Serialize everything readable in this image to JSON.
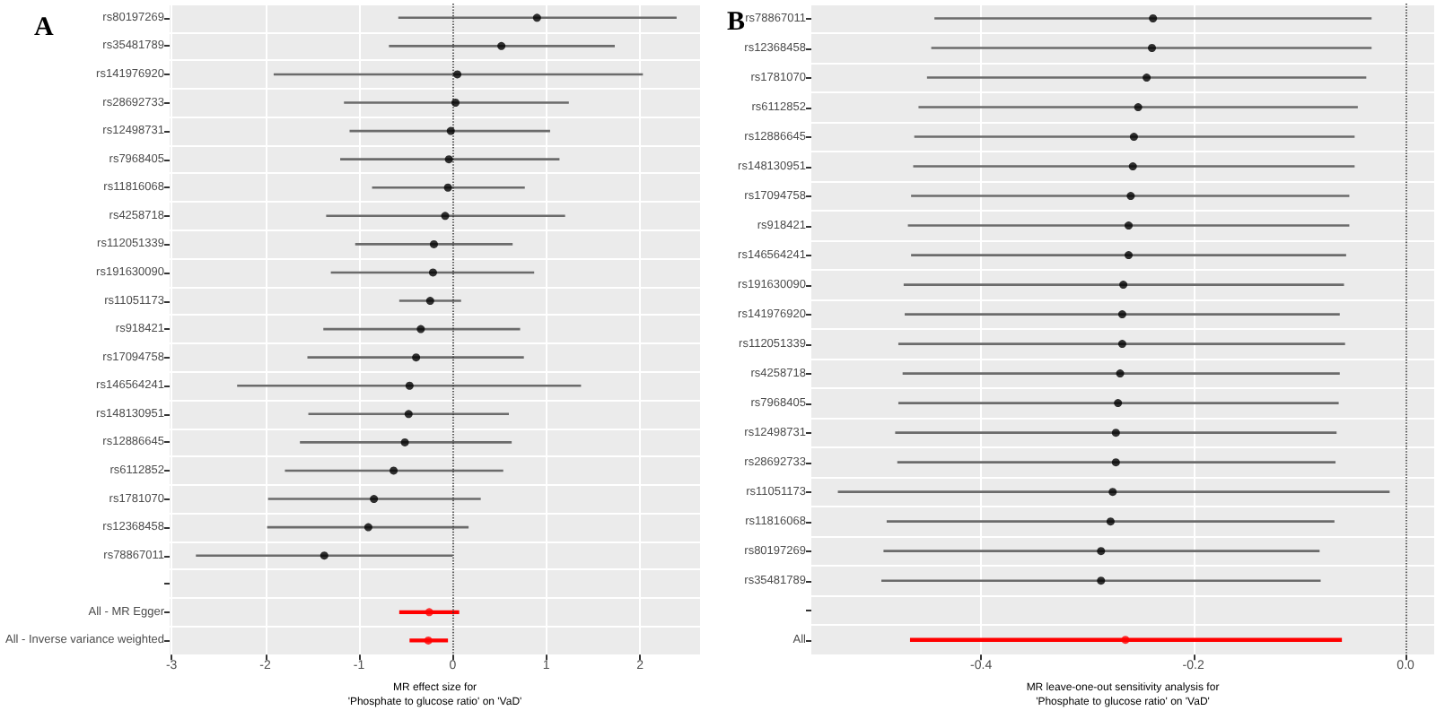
{
  "chart_data": [
    {
      "type": "scatter",
      "orientation": "horizontal",
      "title": "A",
      "xlabel": "MR effect size for\n'Phosphate to glucose ratio' on 'VaD'",
      "categories": [
        "rs80197269",
        "rs35481789",
        "rs141976920",
        "rs28692733",
        "rs12498731",
        "rs7968405",
        "rs11816068",
        "rs4258718",
        "rs112051339",
        "rs191630090",
        "rs11051173",
        "rs918421",
        "rs17094758",
        "rs146564241",
        "rs148130951",
        "rs12886645",
        "rs6112852",
        "rs1781070",
        "rs12368458",
        "rs78867011",
        null,
        "All - MR Egger",
        "All - Inverse variance weighted"
      ],
      "series": [
        {
          "color": "#000000",
          "values": [
            0.9,
            0.52,
            0.05,
            0.03,
            -0.02,
            -0.04,
            -0.05,
            -0.08,
            -0.2,
            -0.21,
            -0.24,
            -0.34,
            -0.39,
            -0.46,
            -0.47,
            -0.51,
            -0.63,
            -0.84,
            -0.9,
            -1.37,
            null,
            null,
            null
          ],
          "errors": [
            [
              -0.58,
              2.39
            ],
            [
              -0.68,
              1.73
            ],
            [
              -1.91,
              2.03
            ],
            [
              -1.16,
              1.24
            ],
            [
              -1.1,
              1.04
            ],
            [
              -1.2,
              1.14
            ],
            [
              -0.86,
              0.77
            ],
            [
              -1.35,
              1.2
            ],
            [
              -1.04,
              0.64
            ],
            [
              -1.3,
              0.87
            ],
            [
              -0.57,
              0.09
            ],
            [
              -1.38,
              0.72
            ],
            [
              -1.55,
              0.76
            ],
            [
              -2.3,
              1.37
            ],
            [
              -1.54,
              0.6
            ],
            [
              -1.63,
              0.63
            ],
            [
              -1.79,
              0.54
            ],
            [
              -1.97,
              0.3
            ],
            [
              -1.98,
              0.17
            ],
            [
              -2.74,
              0.0
            ],
            null,
            null,
            null
          ]
        },
        {
          "color": "#ff0000",
          "values": [
            null,
            null,
            null,
            null,
            null,
            null,
            null,
            null,
            null,
            null,
            null,
            null,
            null,
            null,
            null,
            null,
            null,
            null,
            null,
            null,
            null,
            -0.25,
            -0.26
          ],
          "errors": [
            null,
            null,
            null,
            null,
            null,
            null,
            null,
            null,
            null,
            null,
            null,
            null,
            null,
            null,
            null,
            null,
            null,
            null,
            null,
            null,
            null,
            [
              -0.57,
              0.07
            ],
            [
              -0.46,
              -0.05
            ]
          ]
        }
      ],
      "xlim": [
        -3.02,
        2.64
      ],
      "xticks": [
        -3,
        -2,
        -1,
        0,
        1,
        2
      ],
      "ref_lines": [
        {
          "axis": "x",
          "value": 0,
          "line_style": "dotted",
          "color": "#333333"
        }
      ],
      "grid": true,
      "marker": "circle"
    },
    {
      "type": "scatter",
      "orientation": "horizontal",
      "title": "B",
      "xlabel": "MR leave-one-out sensitivity analysis for\n'Phosphate to glucose ratio' on 'VaD'",
      "categories": [
        "rs78867011",
        "rs12368458",
        "rs1781070",
        "rs6112852",
        "rs12886645",
        "rs148130951",
        "rs17094758",
        "rs918421",
        "rs146564241",
        "rs191630090",
        "rs141976920",
        "rs112051339",
        "rs4258718",
        "rs7968405",
        "rs12498731",
        "rs28692733",
        "rs11051173",
        "rs11816068",
        "rs80197269",
        "rs35481789",
        null,
        "All"
      ],
      "series": [
        {
          "color": "#000000",
          "values": [
            -0.238,
            -0.239,
            -0.244,
            -0.252,
            -0.256,
            -0.257,
            -0.259,
            -0.261,
            -0.261,
            -0.266,
            -0.267,
            -0.267,
            -0.269,
            -0.271,
            -0.273,
            -0.273,
            -0.276,
            -0.278,
            -0.287,
            -0.287,
            null,
            null
          ],
          "errors": [
            [
              -0.444,
              -0.032
            ],
            [
              -0.447,
              -0.032
            ],
            [
              -0.451,
              -0.037
            ],
            [
              -0.459,
              -0.045
            ],
            [
              -0.463,
              -0.048
            ],
            [
              -0.464,
              -0.048
            ],
            [
              -0.466,
              -0.053
            ],
            [
              -0.469,
              -0.053
            ],
            [
              -0.466,
              -0.056
            ],
            [
              -0.473,
              -0.058
            ],
            [
              -0.472,
              -0.062
            ],
            [
              -0.478,
              -0.057
            ],
            [
              -0.474,
              -0.062
            ],
            [
              -0.478,
              -0.063
            ],
            [
              -0.481,
              -0.065
            ],
            [
              -0.479,
              -0.066
            ],
            [
              -0.535,
              -0.015
            ],
            [
              -0.489,
              -0.067
            ],
            [
              -0.492,
              -0.081
            ],
            [
              -0.494,
              -0.08
            ],
            null,
            null
          ]
        },
        {
          "color": "#ff0000",
          "values": [
            null,
            null,
            null,
            null,
            null,
            null,
            null,
            null,
            null,
            null,
            null,
            null,
            null,
            null,
            null,
            null,
            null,
            null,
            null,
            null,
            null,
            -0.264
          ],
          "errors": [
            null,
            null,
            null,
            null,
            null,
            null,
            null,
            null,
            null,
            null,
            null,
            null,
            null,
            null,
            null,
            null,
            null,
            null,
            null,
            null,
            null,
            [
              -0.467,
              -0.06
            ]
          ]
        }
      ],
      "xlim": [
        -0.56,
        0.027
      ],
      "xticks": [
        -0.4,
        -0.2,
        {
          "value": 0,
          "label": "0.0"
        }
      ],
      "ref_lines": [
        {
          "axis": "x",
          "value": 0,
          "line_style": "dotted",
          "color": "#333333"
        }
      ],
      "grid": true,
      "marker": "circle"
    }
  ]
}
